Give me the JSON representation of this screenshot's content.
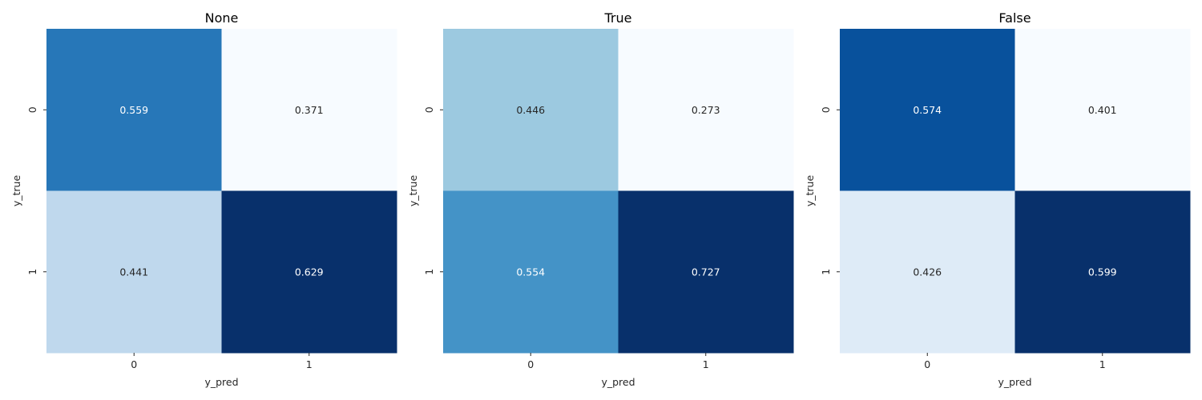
{
  "chart_data": [
    {
      "type": "heatmap",
      "title": "None",
      "xlabel": "y_pred",
      "ylabel": "y_true",
      "x_categories": [
        "0",
        "1"
      ],
      "y_categories": [
        "0",
        "1"
      ],
      "values": [
        [
          0.559,
          0.371
        ],
        [
          0.441,
          0.629
        ]
      ],
      "colormap": "Blues",
      "colorbar": false
    },
    {
      "type": "heatmap",
      "title": "True",
      "xlabel": "y_pred",
      "ylabel": "y_true",
      "x_categories": [
        "0",
        "1"
      ],
      "y_categories": [
        "0",
        "1"
      ],
      "values": [
        [
          0.446,
          0.273
        ],
        [
          0.554,
          0.727
        ]
      ],
      "colormap": "Blues",
      "colorbar": false
    },
    {
      "type": "heatmap",
      "title": "False",
      "xlabel": "y_pred",
      "ylabel": "y_true",
      "x_categories": [
        "0",
        "1"
      ],
      "y_categories": [
        "0",
        "1"
      ],
      "values": [
        [
          0.574,
          0.401
        ],
        [
          0.426,
          0.599
        ]
      ],
      "colormap": "Blues",
      "colorbar": false
    }
  ]
}
